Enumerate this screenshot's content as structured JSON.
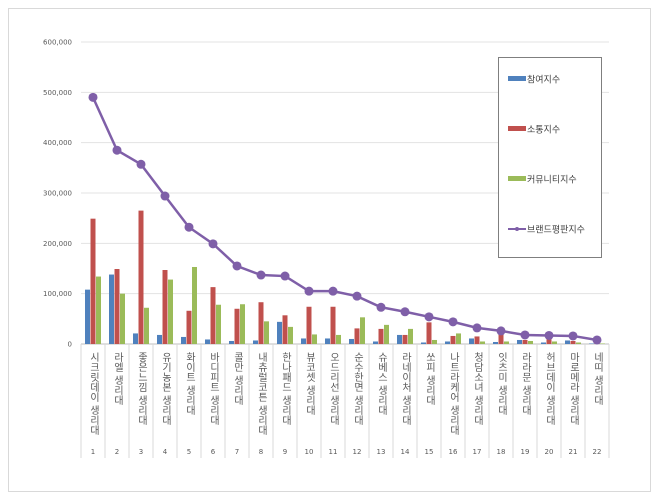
{
  "chart_data": {
    "type": "bar",
    "categories": [
      "시크릿데이 생리대",
      "라엘 생리대",
      "좋은느낌 생리대",
      "유기농본 생리대",
      "화이트 생리대",
      "바디피트 생리대",
      "콜만 생리대",
      "내츄럴코튼 생리대",
      "한나패드 생리대",
      "뷰코셋 생리대",
      "오드리선 생리대",
      "순수한면 생리대",
      "슈베스 생리대",
      "라네이처 생리대",
      "쏘피 생리대",
      "나트라케어 생리대",
      "청담소녀 생리대",
      "잇츠미 생리대",
      "라라문 생리대",
      "허브데이 생리대",
      "마로메라 생리대",
      "네띠 생리대"
    ],
    "category_numbers": [
      "1",
      "2",
      "3",
      "4",
      "5",
      "6",
      "7",
      "8",
      "9",
      "10",
      "11",
      "12",
      "13",
      "14",
      "15",
      "16",
      "17",
      "18",
      "19",
      "20",
      "21",
      "22"
    ],
    "series": [
      {
        "name": "참여지수",
        "type": "bar",
        "color": "#4f81bd",
        "values": [
          108000,
          138000,
          21000,
          18000,
          14000,
          9000,
          6000,
          7000,
          44000,
          11000,
          11000,
          10000,
          5000,
          18000,
          3000,
          5000,
          11000,
          4000,
          8000,
          3000,
          7000,
          1000
        ]
      },
      {
        "name": "소통지수",
        "type": "bar",
        "color": "#c0504d",
        "values": [
          249000,
          149000,
          265000,
          147000,
          66000,
          113000,
          70000,
          83000,
          57000,
          74000,
          74000,
          31000,
          30000,
          18000,
          43000,
          16000,
          15000,
          19000,
          8000,
          12000,
          6000,
          1000
        ]
      },
      {
        "name": "커뮤니티지수",
        "type": "bar",
        "color": "#9bbb59",
        "values": [
          134000,
          100000,
          72000,
          128000,
          153000,
          78000,
          79000,
          45000,
          34000,
          19000,
          18000,
          53000,
          38000,
          30000,
          8000,
          21000,
          5000,
          5000,
          6000,
          5000,
          3000,
          1000
        ]
      },
      {
        "name": "브랜드평판지수",
        "type": "line",
        "color": "#7f5fa8",
        "values": [
          490000,
          385000,
          357000,
          294000,
          232000,
          199000,
          155000,
          137000,
          135000,
          105000,
          105000,
          95000,
          73000,
          64000,
          54000,
          44000,
          32000,
          26000,
          18000,
          17000,
          16000,
          8000
        ]
      }
    ],
    "yticks": [
      "0",
      "100,000",
      "200,000",
      "300,000",
      "400,000",
      "500,000",
      "600,000"
    ],
    "ylim": [
      0,
      600000
    ],
    "grid": true,
    "legend": "top-right",
    "title": "",
    "xlabel": "",
    "ylabel": ""
  }
}
